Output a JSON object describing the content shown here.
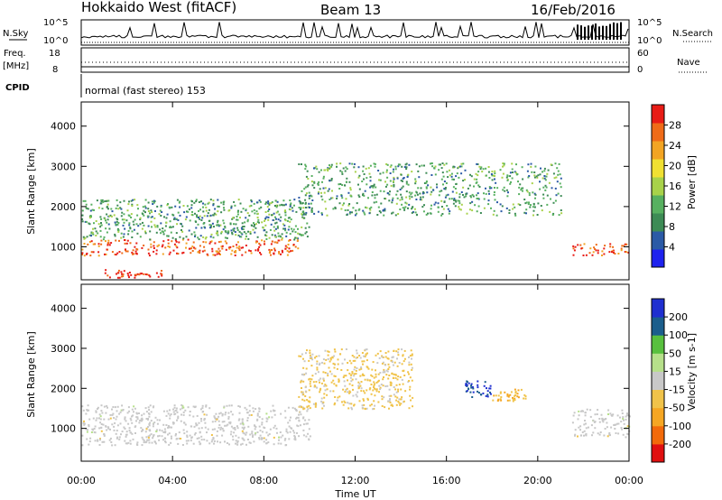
{
  "header": {
    "station": "Hokkaido West (fitACF)",
    "beam": "Beam 13",
    "date": "16/Feb/2016"
  },
  "summary_panel": {
    "left_label": "N.Sky",
    "right_label": "N.Search",
    "left_ticks": [
      "10^5",
      "10^0"
    ],
    "right_ticks": [
      "10^5",
      "10^0"
    ],
    "freq_label_line1": "Freq.",
    "freq_label_line2": "[MHz]",
    "freq_ticks": [
      "18",
      "8"
    ],
    "nave_label": "Nave",
    "nave_ticks": [
      "60",
      "0"
    ],
    "cpid_label": "CPID",
    "cpid_value": "normal (fast stereo) 153"
  },
  "colors": {
    "power": [
      "#1e22ee",
      "#2b5aa6",
      "#3d8b55",
      "#57b060",
      "#a8d24a",
      "#f0e032",
      "#f2a423",
      "#ef6b18",
      "#e81c16"
    ],
    "velocity": [
      "#e01010",
      "#f26a0a",
      "#f5a623",
      "#f0c34a",
      "#c8c8c8",
      "#b6e08a",
      "#58c03e",
      "#1b5e8c",
      "#1f2fd0"
    ]
  },
  "chart_data": [
    {
      "type": "heatmap",
      "title": "",
      "xlabel": "Time UT",
      "ylabel": "Slant Range [km]",
      "x_ticks": [
        "00:00",
        "04:00",
        "08:00",
        "12:00",
        "16:00",
        "20:00",
        "00:00"
      ],
      "xlim_hours": [
        0,
        24
      ],
      "y_ticks": [
        1000,
        2000,
        3000,
        4000
      ],
      "ylim": [
        180,
        4600
      ],
      "colorbar": {
        "label": "Power [dB]",
        "ticks": [
          "4",
          "8",
          "12",
          "16",
          "20",
          "24",
          "28"
        ],
        "range": [
          0,
          30
        ]
      },
      "features": [
        {
          "desc": "dense high-power band",
          "start_h": 0.0,
          "end_h": 9.5,
          "range_km": [
            800,
            1200
          ],
          "power_db": 26
        },
        {
          "desc": "high-power band",
          "start_h": 21.5,
          "end_h": 24.0,
          "range_km": [
            800,
            1100
          ],
          "power_db": 26
        },
        {
          "desc": "mid-range scatter",
          "start_h": 0.0,
          "end_h": 10.0,
          "range_km": [
            1200,
            2200
          ],
          "power_db": 10
        },
        {
          "desc": "high-range scatter",
          "start_h": 9.5,
          "end_h": 21.0,
          "range_km": [
            1800,
            3100
          ],
          "power_db": 10
        },
        {
          "desc": "low-range echo",
          "start_h": 1.0,
          "end_h": 3.5,
          "range_km": [
            250,
            450
          ],
          "power_db": 28
        }
      ]
    },
    {
      "type": "heatmap",
      "title": "",
      "xlabel": "Time UT",
      "ylabel": "Slant Range [km]",
      "x_ticks": [
        "00:00",
        "04:00",
        "08:00",
        "12:00",
        "16:00",
        "20:00",
        "00:00"
      ],
      "xlim_hours": [
        0,
        24
      ],
      "y_ticks": [
        1000,
        2000,
        3000,
        4000
      ],
      "ylim": [
        180,
        4600
      ],
      "colorbar": {
        "label": "Velocity [m s-1]",
        "ticks": [
          "-200",
          "-100",
          "-50",
          "-15",
          "15",
          "50",
          "100",
          "200"
        ],
        "range": [
          -250,
          250
        ]
      },
      "features": [
        {
          "desc": "ground scatter (near zero)",
          "start_h": 0.0,
          "end_h": 10.0,
          "range_km": [
            600,
            1600
          ],
          "velocity": 0
        },
        {
          "desc": "negative velocity patch",
          "start_h": 9.5,
          "end_h": 14.5,
          "range_km": [
            1500,
            3000
          ],
          "velocity": -40
        },
        {
          "desc": "positive velocity patch",
          "start_h": 16.8,
          "end_h": 18.0,
          "range_km": [
            1800,
            2200
          ],
          "velocity": 200
        },
        {
          "desc": "negative velocity patch",
          "start_h": 18.0,
          "end_h": 19.5,
          "range_km": [
            1700,
            2000
          ],
          "velocity": -80
        },
        {
          "desc": "near-zero band",
          "start_h": 21.5,
          "end_h": 24.0,
          "range_km": [
            800,
            1500
          ],
          "velocity": 0
        }
      ]
    }
  ]
}
